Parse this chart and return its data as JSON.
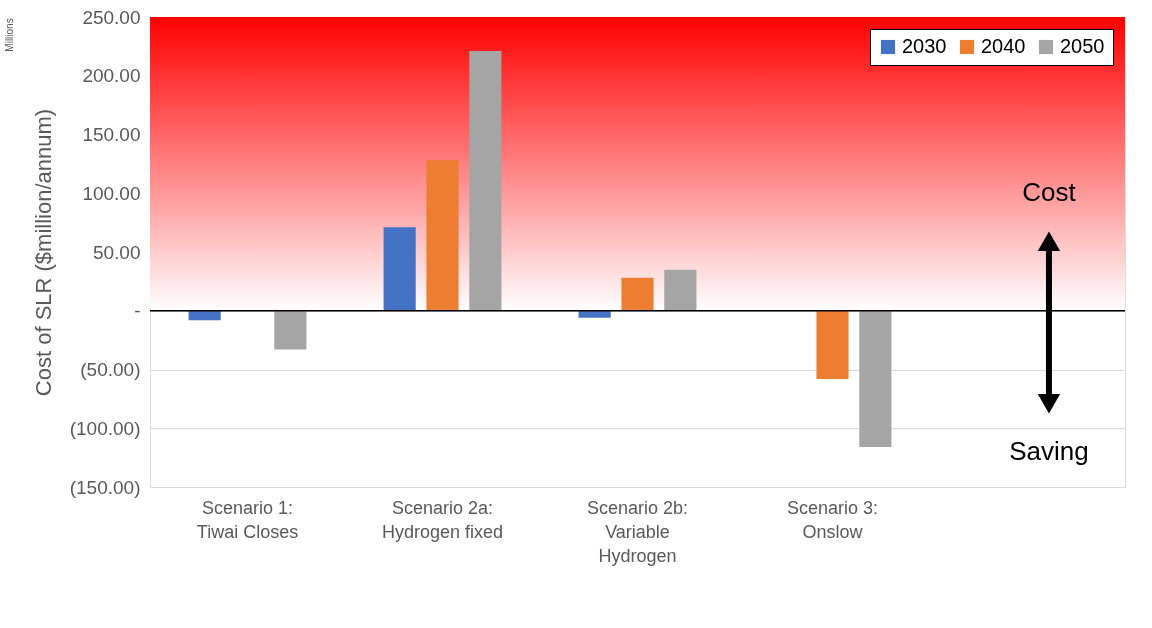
{
  "chart_data": {
    "type": "bar",
    "ylabel": "Cost of SLR ($million/annum)",
    "categories": [
      "Scenario 1: Tiwai Closes",
      "Scenario 2a: Hydrogen fixed",
      "Scenario 2b: Variable Hydrogen",
      "Scenario 3: Onslow",
      null
    ],
    "series": [
      {
        "name": "2030",
        "color": "#4472c4",
        "values": [
          -8,
          71,
          -6,
          null,
          null
        ]
      },
      {
        "name": "2040",
        "color": "#ed7d31",
        "values": [
          null,
          128,
          28,
          -58,
          null
        ]
      },
      {
        "name": "2050",
        "color": "#a5a5a5",
        "values": [
          -33,
          221,
          35,
          -116,
          null
        ]
      }
    ],
    "ylim": [
      -150,
      250
    ],
    "yticks": [
      {
        "value": -150,
        "label": "(150.00)"
      },
      {
        "value": -100,
        "label": "(100.00)"
      },
      {
        "value": -50,
        "label": "(50.00)"
      },
      {
        "value": 0,
        "label": "-"
      },
      {
        "value": 50,
        "label": "50.00"
      },
      {
        "value": 100,
        "label": "100.00"
      },
      {
        "value": 150,
        "label": "150.00"
      },
      {
        "value": 200,
        "label": "200.00"
      },
      {
        "value": 250,
        "label": "250.00"
      }
    ],
    "grid": "y",
    "legend": "top right",
    "bands": [
      {
        "axis": "y",
        "from": 0,
        "to": 250,
        "color": "#ff0000"
      }
    ],
    "ref_lines": [
      {
        "axis": "y",
        "value": 0,
        "color": "#000000"
      }
    ],
    "annotations": [
      "Millions",
      "Cost",
      "Saving"
    ]
  }
}
